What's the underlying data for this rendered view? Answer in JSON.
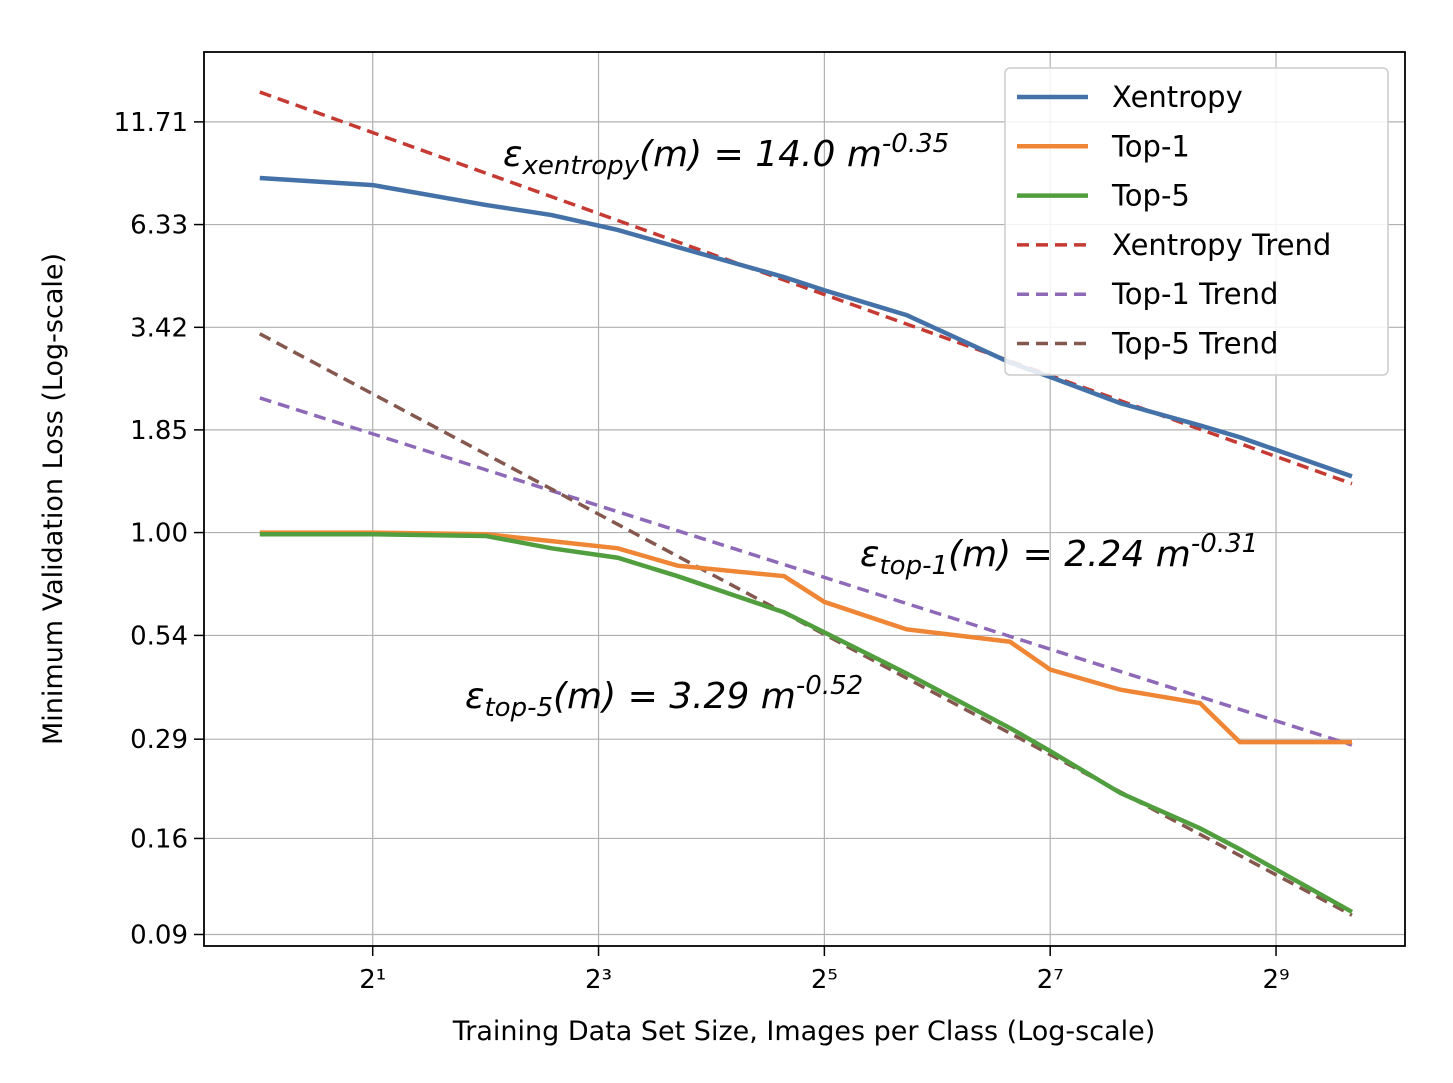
{
  "chart_data": {
    "type": "line",
    "xlabel": "Training Data Set Size, Images per Class (Log-scale)",
    "ylabel": "Minimum Validation Loss (Log-scale)",
    "xscale": "log",
    "yscale": "log",
    "grid": true,
    "legend": "upper right",
    "xlim": [
      0.71,
      1130
    ],
    "ylim": [
      0.084,
      17.8
    ],
    "xticks": [
      {
        "value": 2,
        "label": "2¹"
      },
      {
        "value": 8,
        "label": "2³"
      },
      {
        "value": 32,
        "label": "2⁵"
      },
      {
        "value": 128,
        "label": "2⁷"
      },
      {
        "value": 512,
        "label": "2⁹"
      }
    ],
    "yticks": [
      0.09,
      0.16,
      0.29,
      0.54,
      {
        "value": 1,
        "label": "1.00"
      },
      1.85,
      3.42,
      6.33,
      11.71
    ],
    "x": [
      1,
      2,
      4,
      6,
      9,
      13,
      25,
      32,
      53,
      100,
      128,
      197,
      321,
      410,
      816
    ],
    "series": [
      {
        "name": "Xentropy",
        "color": "#4472a8",
        "dash": false,
        "values": [
          8.37,
          8.02,
          7.12,
          6.7,
          6.13,
          5.53,
          4.62,
          4.27,
          3.68,
          2.77,
          2.54,
          2.17,
          1.9,
          1.77,
          1.4
        ]
      },
      {
        "name": "Top-1",
        "color": "#ef8636",
        "dash": false,
        "values": [
          1.0,
          1.0,
          0.99,
          0.95,
          0.91,
          0.82,
          0.77,
          0.66,
          0.56,
          0.52,
          0.44,
          0.39,
          0.36,
          0.285,
          0.285
        ]
      },
      {
        "name": "Top-5",
        "color": "#519e3e",
        "dash": false,
        "values": [
          0.99,
          0.99,
          0.98,
          0.91,
          0.86,
          0.77,
          0.62,
          0.55,
          0.43,
          0.31,
          0.27,
          0.21,
          0.17,
          0.15,
          0.103
        ]
      },
      {
        "name": "Xentropy Trend",
        "color": "#c53a32",
        "dash": true,
        "x": [
          1,
          816
        ],
        "values": [
          14.0,
          1.34
        ]
      },
      {
        "name": "Top-1 Trend",
        "color": "#8d69b8",
        "dash": true,
        "x": [
          1,
          816
        ],
        "values": [
          2.24,
          0.28
        ]
      },
      {
        "name": "Top-5 Trend",
        "color": "#84584e",
        "dash": true,
        "x": [
          1,
          816
        ],
        "values": [
          3.29,
          0.101
        ]
      }
    ],
    "annotations": [
      {
        "symbol": "ε",
        "sub": "xentropy",
        "main": "(m) = 14.0 m",
        "sup": "-0.35"
      },
      {
        "symbol": "ε",
        "sub": "top-1",
        "main": "(m) = 2.24 m",
        "sup": "-0.31"
      },
      {
        "symbol": "ε",
        "sub": "top-5",
        "main": "(m) = 3.29 m",
        "sup": "-0.52"
      }
    ]
  }
}
